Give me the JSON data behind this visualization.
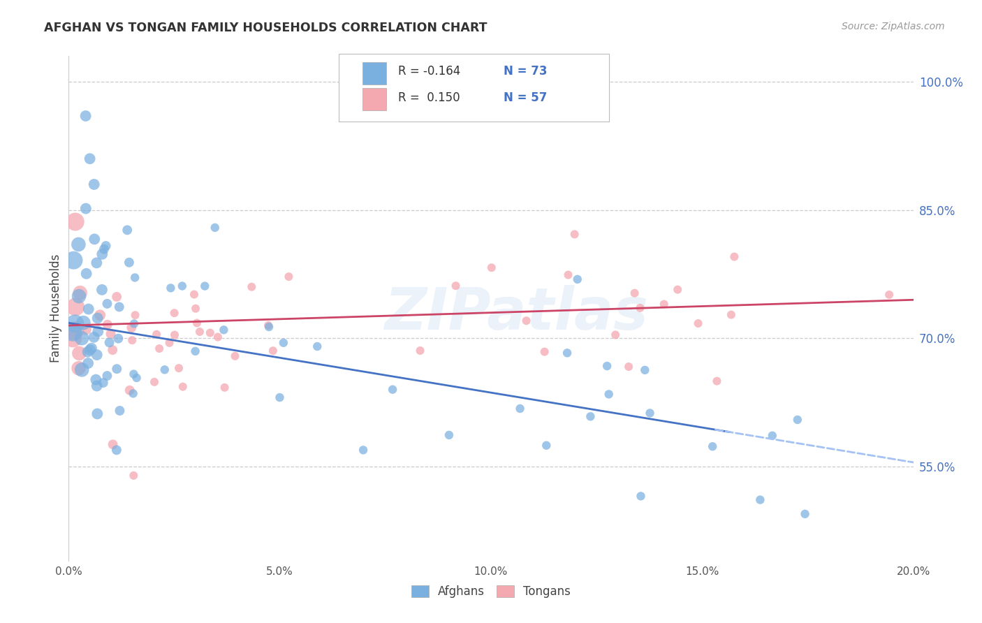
{
  "title": "AFGHAN VS TONGAN FAMILY HOUSEHOLDS CORRELATION CHART",
  "source": "Source: ZipAtlas.com",
  "ylabel": "Family Households",
  "afghan_color": "#7ab0e0",
  "tongan_color": "#f4a8b0",
  "trend_afghan_color": "#4472c4",
  "trend_tongan_color": "#cc4466",
  "trend_afghan_dash_color": "#a4c2f4",
  "watermark": "ZIPatlas",
  "legend_R_afghan": "-0.164",
  "legend_N_afghan": "73",
  "legend_R_tongan": "0.150",
  "legend_N_tongan": "57",
  "xlim": [
    0.0,
    0.2
  ],
  "ylim": [
    0.44,
    1.03
  ],
  "ytick_values": [
    0.55,
    0.7,
    0.85,
    1.0
  ],
  "ytick_labels": [
    "55.0%",
    "70.0%",
    "85.0%",
    "100.0%"
  ],
  "xtick_values": [
    0.0,
    0.05,
    0.1,
    0.15,
    0.2
  ],
  "xtick_labels": [
    "0.0%",
    "5.0%",
    "10.0%",
    "15.0%",
    "20.0%"
  ],
  "trend_afghan_x0": 0.0,
  "trend_afghan_y0": 0.718,
  "trend_afghan_x1": 0.2,
  "trend_afghan_y1": 0.555,
  "trend_afghan_solid_end": 0.155,
  "trend_tongan_x0": 0.0,
  "trend_tongan_y0": 0.715,
  "trend_tongan_x1": 0.2,
  "trend_tongan_y1": 0.745
}
